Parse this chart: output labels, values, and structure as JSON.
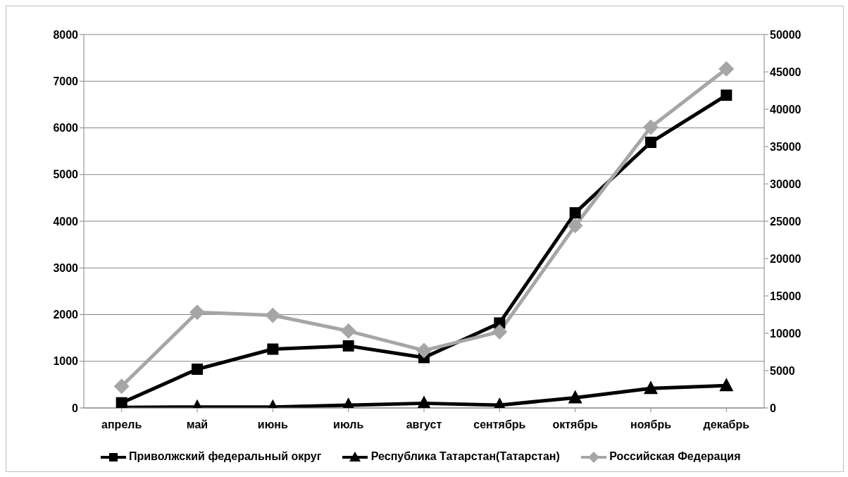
{
  "chart_data": {
    "type": "line",
    "categories": [
      "апрель",
      "май",
      "июнь",
      "июль",
      "август",
      "сентябрь",
      "октябрь",
      "ноябрь",
      "декабрь"
    ],
    "series": [
      {
        "name": "Приволжский федеральный округ",
        "color": "#000000",
        "marker": "square",
        "values": [
          110,
          830,
          1260,
          1330,
          1080,
          1820,
          4180,
          5690,
          6700
        ]
      },
      {
        "name": "Республика Татарстан(Татарстан)",
        "color": "#000000",
        "marker": "triangle",
        "values": [
          10,
          20,
          20,
          60,
          100,
          60,
          220,
          420,
          480
        ]
      },
      {
        "name": "Российская Федерация",
        "color": "#a6a6a6",
        "marker": "diamond",
        "axis": "y2",
        "values": [
          2900,
          12800,
          12400,
          10300,
          7700,
          10200,
          24400,
          37600,
          45400
        ]
      }
    ],
    "ylim": [
      0,
      8000
    ],
    "yticks": [
      0,
      1000,
      2000,
      3000,
      4000,
      5000,
      6000,
      7000,
      8000
    ],
    "y2lim": [
      0,
      50000
    ],
    "y2ticks": [
      0,
      5000,
      10000,
      15000,
      20000,
      25000,
      30000,
      35000,
      40000,
      45000,
      50000
    ],
    "grid": "y",
    "legend": "bottom"
  }
}
